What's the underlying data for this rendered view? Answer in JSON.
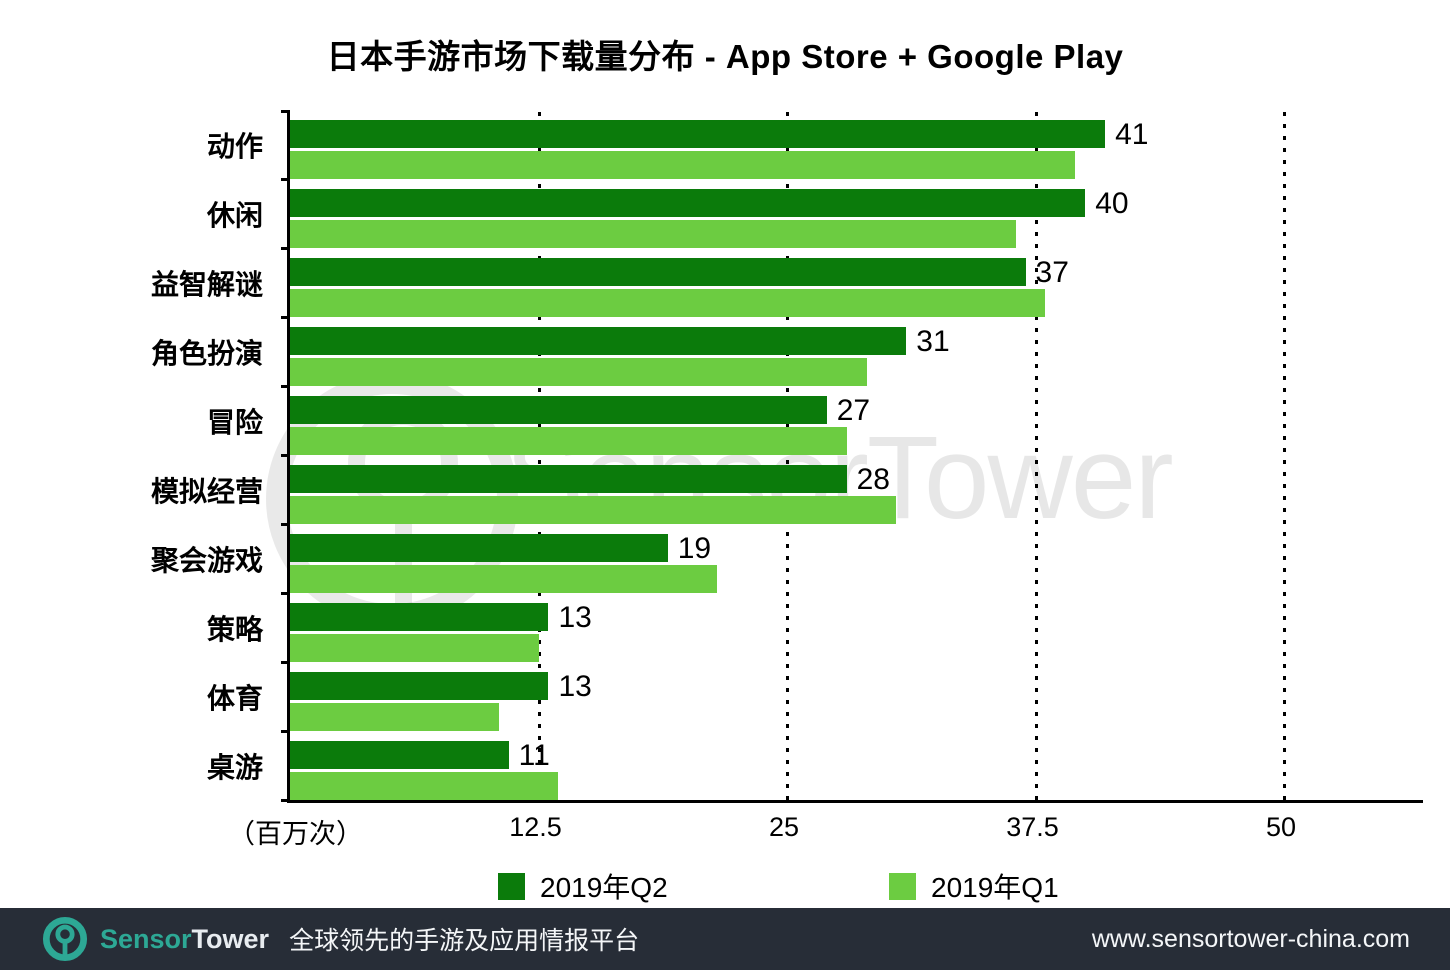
{
  "chart_data": {
    "type": "bar",
    "orientation": "horizontal",
    "title": "日本手游市场下载量分布 - App Store + Google Play",
    "xlabel": "（百万次）",
    "x_ticks": [
      "12.5",
      "25",
      "37.5",
      "50"
    ],
    "x_tick_values": [
      12.5,
      25,
      37.5,
      50
    ],
    "xlim": [
      0,
      57
    ],
    "grid": "dotted-vertical",
    "categories": [
      "动作",
      "休闲",
      "益智解谜",
      "角色扮演",
      "冒险",
      "模拟经营",
      "聚会游戏",
      "策略",
      "体育",
      "桌游"
    ],
    "series": [
      {
        "name": "2019年Q2",
        "color": "#0b7b0b",
        "values": [
          41,
          40,
          37,
          31,
          27,
          28,
          19,
          13,
          13,
          11
        ],
        "labeled": true
      },
      {
        "name": "2019年Q1",
        "color": "#6ccc41",
        "values": [
          39.5,
          36.5,
          38,
          29,
          28,
          30.5,
          21.5,
          12.5,
          10.5,
          13.5
        ],
        "labeled": false
      }
    ],
    "value_labels": [
      "41",
      "40",
      "37",
      "31",
      "27",
      "28",
      "19",
      "13",
      "13",
      "11"
    ]
  },
  "watermark": {
    "text": "SensorTower"
  },
  "legend": {
    "items": [
      {
        "label": "2019年Q2",
        "color": "#0b7b0b"
      },
      {
        "label": "2019年Q1",
        "color": "#6ccc41"
      }
    ]
  },
  "footer": {
    "brand_sensor": "Sensor",
    "brand_tower": "Tower",
    "tagline": "全球领先的手游及应用情报平台",
    "url": "www.sensortower-china.com"
  }
}
